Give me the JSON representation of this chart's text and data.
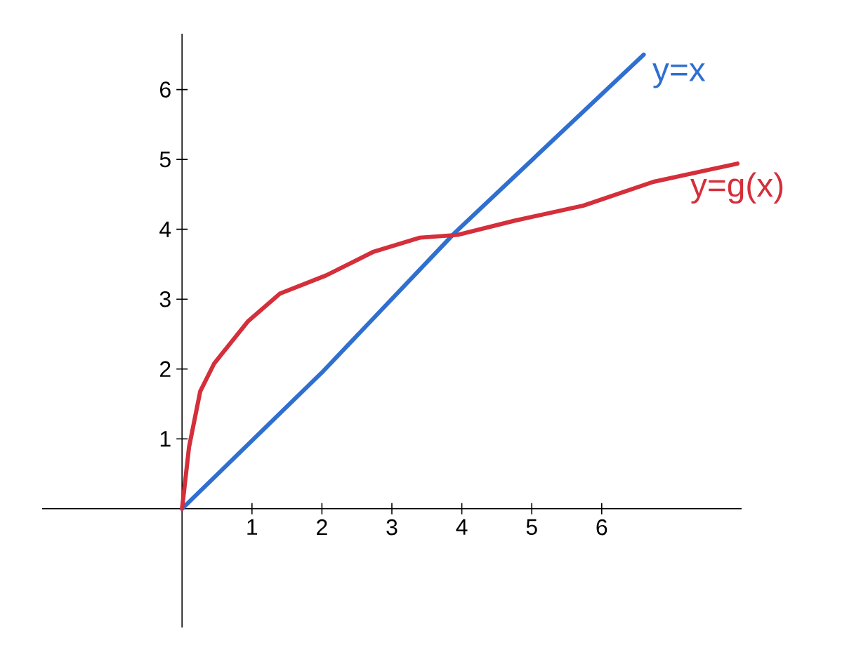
{
  "chart_data": {
    "type": "line",
    "xlim": [
      -2,
      8
    ],
    "ylim": [
      -1.7,
      6.8
    ],
    "xticks": [
      1,
      2,
      3,
      4,
      5,
      6
    ],
    "yticks": [
      1,
      2,
      3,
      4,
      5,
      6
    ],
    "series": [
      {
        "name": "y=x",
        "color": "#2f6fd0",
        "x": [
          0,
          2,
          3.9,
          6.6
        ],
        "values": [
          0,
          1.95,
          3.95,
          6.5
        ]
      },
      {
        "name": "y=g(x)",
        "color": "#d42f3a",
        "x": [
          0,
          0.1,
          0.26,
          0.46,
          0.94,
          1.4,
          2.06,
          2.74,
          3.4,
          3.94,
          4.74,
          5.74,
          6.74,
          7.94
        ],
        "values": [
          0,
          0.88,
          1.68,
          2.08,
          2.68,
          3.08,
          3.34,
          3.68,
          3.88,
          3.92,
          4.12,
          4.34,
          4.68,
          4.94
        ]
      }
    ]
  }
}
